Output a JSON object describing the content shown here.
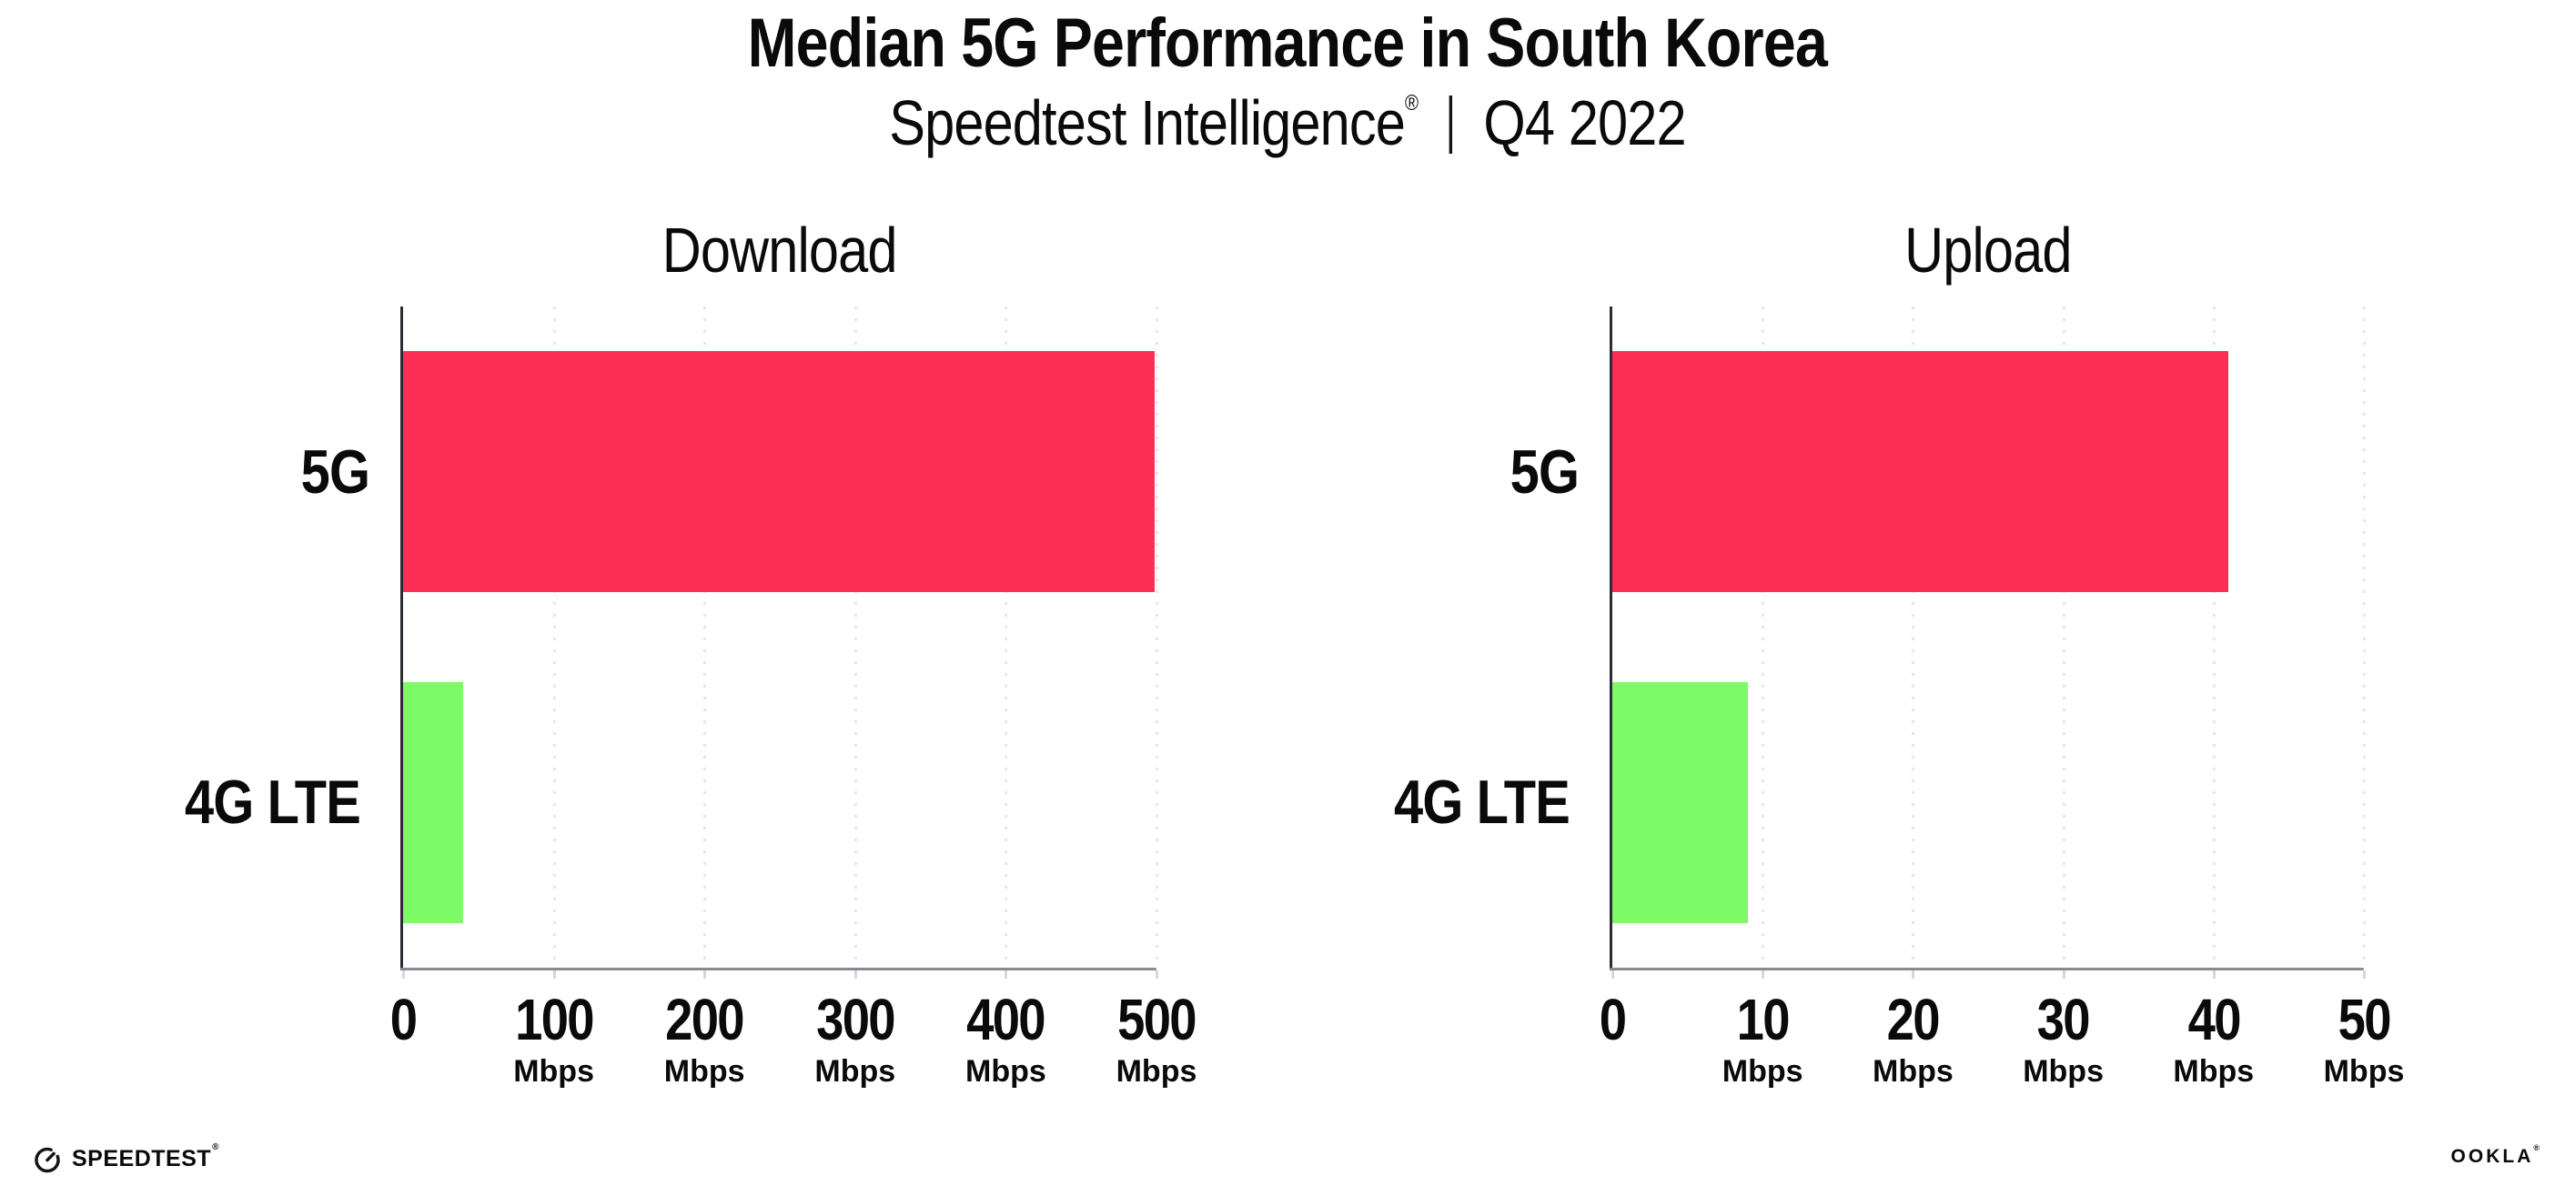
{
  "title": "Median 5G Performance in South Korea",
  "subtitle": {
    "brand": "Speedtest Intelligence",
    "registered_mark": "®",
    "separator": "|",
    "period": "Q4 2022"
  },
  "footer": {
    "speedtest_label": "SPEEDTEST",
    "speedtest_mark": "®",
    "speedtest_icon": "gauge-icon",
    "ookla_label": "OOKLA",
    "ookla_mark": "®"
  },
  "colors": {
    "bar_5g": "#FD2E55",
    "bar_4g_lte": "#7DFB66",
    "gridline": "#e4e4ef",
    "axis_line": "#8a8a93",
    "axis_spine": "#2b2b33",
    "text": "#0a0a0a",
    "background": "#ffffff"
  },
  "chart_data": [
    {
      "type": "bar",
      "orientation": "horizontal",
      "title": "Download",
      "categories": [
        "5G",
        "4G LTE"
      ],
      "values": [
        499,
        40
      ],
      "unit": "Mbps",
      "xlim": [
        0,
        500
      ],
      "xticks": [
        0,
        100,
        200,
        300,
        400,
        500
      ],
      "xtick_unit_label": "Mbps",
      "unit_shown_on_zero_tick": false,
      "grid": "vertical dotted",
      "legend": "none",
      "bar_colors": [
        "#FD2E55",
        "#7DFB66"
      ]
    },
    {
      "type": "bar",
      "orientation": "horizontal",
      "title": "Upload",
      "categories": [
        "5G",
        "4G LTE"
      ],
      "values": [
        41,
        9
      ],
      "unit": "Mbps",
      "xlim": [
        0,
        50
      ],
      "xticks": [
        0,
        10,
        20,
        30,
        40,
        50
      ],
      "xtick_unit_label": "Mbps",
      "unit_shown_on_zero_tick": false,
      "grid": "vertical dotted",
      "legend": "none",
      "bar_colors": [
        "#FD2E55",
        "#7DFB66"
      ]
    }
  ]
}
